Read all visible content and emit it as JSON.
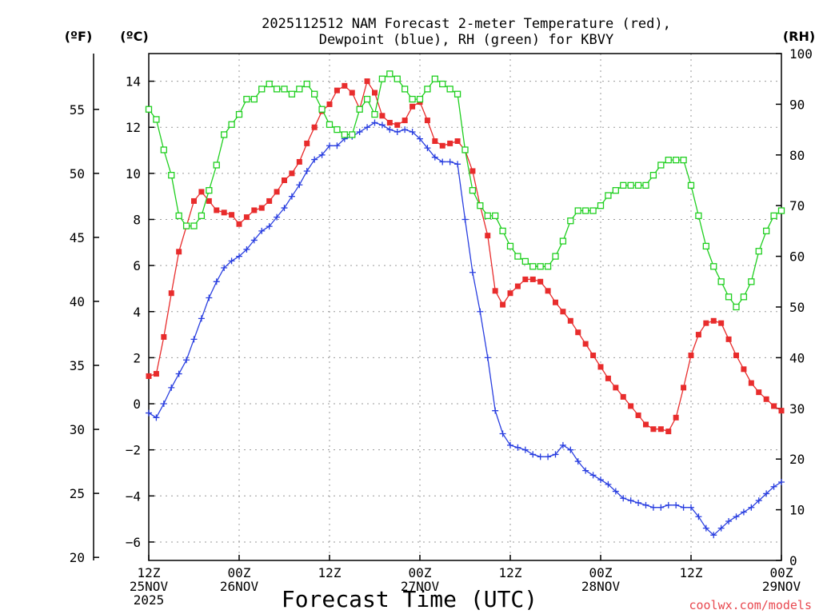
{
  "chart_data": {
    "type": "line",
    "title_line1": "2025112512 NAM Forecast 2-meter Temperature (red),",
    "title_line2": "Dewpoint (blue), RH (green) for KBVY",
    "xlabel": "Forecast Time (UTC)",
    "unit_f": "(ºF)",
    "unit_c": "(ºC)",
    "unit_rh": "(RH)",
    "watermark": "coolwx.com/models",
    "x_hours_range": [
      0,
      84
    ],
    "ylim_c": [
      -6.8,
      15.2
    ],
    "ylim_rh": [
      0,
      100
    ],
    "f_ticks": [
      20,
      25,
      30,
      35,
      40,
      45,
      50,
      55
    ],
    "c_ticks": [
      -6,
      -4,
      -2,
      0,
      2,
      4,
      6,
      8,
      10,
      12,
      14
    ],
    "rh_ticks": [
      0,
      10,
      20,
      30,
      40,
      50,
      60,
      70,
      80,
      90,
      100
    ],
    "x_ticks": [
      {
        "hour": 0,
        "line1": "12Z",
        "line2": "25NOV",
        "line3": "2025"
      },
      {
        "hour": 12,
        "line1": "00Z",
        "line2": "26NOV",
        "line3": ""
      },
      {
        "hour": 24,
        "line1": "12Z",
        "line2": "",
        "line3": ""
      },
      {
        "hour": 36,
        "line1": "00Z",
        "line2": "27NOV",
        "line3": ""
      },
      {
        "hour": 48,
        "line1": "12Z",
        "line2": "",
        "line3": ""
      },
      {
        "hour": 60,
        "line1": "00Z",
        "line2": "28NOV",
        "line3": ""
      },
      {
        "hour": 72,
        "line1": "12Z",
        "line2": "",
        "line3": ""
      },
      {
        "hour": 84,
        "line1": "00Z",
        "line2": "29NOV",
        "line3": ""
      }
    ],
    "x": [
      0,
      1,
      2,
      3,
      4,
      5,
      6,
      7,
      8,
      9,
      10,
      11,
      12,
      13,
      14,
      15,
      16,
      17,
      18,
      19,
      20,
      21,
      22,
      23,
      24,
      25,
      26,
      27,
      28,
      29,
      30,
      31,
      32,
      33,
      34,
      35,
      36,
      37,
      38,
      39,
      40,
      41,
      42,
      43,
      44,
      45,
      46,
      47,
      48,
      49,
      50,
      51,
      52,
      53,
      54,
      55,
      56,
      57,
      58,
      59,
      60,
      61,
      62,
      63,
      64,
      65,
      66,
      67,
      68,
      69,
      70,
      71,
      72,
      73,
      74,
      75,
      76,
      77,
      78,
      79,
      80,
      81,
      82,
      83,
      84
    ],
    "series": [
      {
        "name": "Temperature (°C)",
        "color": "#e82c2c",
        "axis": "c",
        "values": [
          1.2,
          1.3,
          2.9,
          4.8,
          6.6,
          7.7,
          8.8,
          9.2,
          8.8,
          8.4,
          8.3,
          8.2,
          7.8,
          8.1,
          8.4,
          8.5,
          8.8,
          9.2,
          9.7,
          10.0,
          10.5,
          11.3,
          12.0,
          12.7,
          13.0,
          13.6,
          13.8,
          13.5,
          12.8,
          14.0,
          13.5,
          12.5,
          12.2,
          12.1,
          12.3,
          12.9,
          13.1,
          12.3,
          11.4,
          11.2,
          11.3,
          11.4,
          11.0,
          10.1,
          8.6,
          7.3,
          4.9,
          4.3,
          4.8,
          5.1,
          5.4,
          5.4,
          5.3,
          4.9,
          4.4,
          4.0,
          3.6,
          3.1,
          2.6,
          2.1,
          1.6,
          1.1,
          0.7,
          0.3,
          -0.1,
          -0.5,
          -0.9,
          -1.1,
          -1.1,
          -1.2,
          -0.6,
          0.7,
          2.1,
          3.0,
          3.5,
          3.6,
          3.5,
          2.8,
          2.1,
          1.5,
          0.9,
          0.5,
          0.2,
          -0.1,
          -0.3
        ]
      },
      {
        "name": "Dewpoint (°C)",
        "color": "#2a3fe0",
        "axis": "c",
        "values": [
          -0.4,
          -0.6,
          0.0,
          0.7,
          1.3,
          1.9,
          2.8,
          3.7,
          4.6,
          5.3,
          5.9,
          6.2,
          6.4,
          6.7,
          7.1,
          7.5,
          7.7,
          8.1,
          8.5,
          9.0,
          9.5,
          10.1,
          10.6,
          10.8,
          11.2,
          11.2,
          11.5,
          11.6,
          11.8,
          12.0,
          12.2,
          12.1,
          11.9,
          11.8,
          11.9,
          11.8,
          11.5,
          11.1,
          10.7,
          10.5,
          10.5,
          10.4,
          8.0,
          5.7,
          4.0,
          2.0,
          -0.3,
          -1.3,
          -1.8,
          -1.9,
          -2.0,
          -2.2,
          -2.3,
          -2.3,
          -2.2,
          -1.8,
          -2.0,
          -2.5,
          -2.9,
          -3.1,
          -3.3,
          -3.5,
          -3.8,
          -4.1,
          -4.2,
          -4.3,
          -4.4,
          -4.5,
          -4.5,
          -4.4,
          -4.4,
          -4.5,
          -4.5,
          -4.9,
          -5.4,
          -5.7,
          -5.4,
          -5.1,
          -4.9,
          -4.7,
          -4.5,
          -4.2,
          -3.9,
          -3.6,
          -3.4
        ]
      },
      {
        "name": "RH (%)",
        "color": "#1fcf1f",
        "axis": "rh",
        "values": [
          89,
          87,
          81,
          76,
          68,
          66,
          66,
          68,
          73,
          78,
          84,
          86,
          88,
          91,
          91,
          93,
          94,
          93,
          93,
          92,
          93,
          94,
          92,
          89,
          86,
          85,
          84,
          84,
          89,
          91,
          88,
          95,
          96,
          95,
          93,
          91,
          91,
          93,
          95,
          94,
          93,
          92,
          81,
          73,
          70,
          68,
          68,
          65,
          62,
          60,
          59,
          58,
          58,
          58,
          60,
          63,
          67,
          69,
          69,
          69,
          70,
          72,
          73,
          74,
          74,
          74,
          74,
          76,
          78,
          79,
          79,
          79,
          74,
          68,
          62,
          58,
          55,
          52,
          50,
          52,
          55,
          61,
          65,
          68,
          69
        ]
      }
    ]
  }
}
